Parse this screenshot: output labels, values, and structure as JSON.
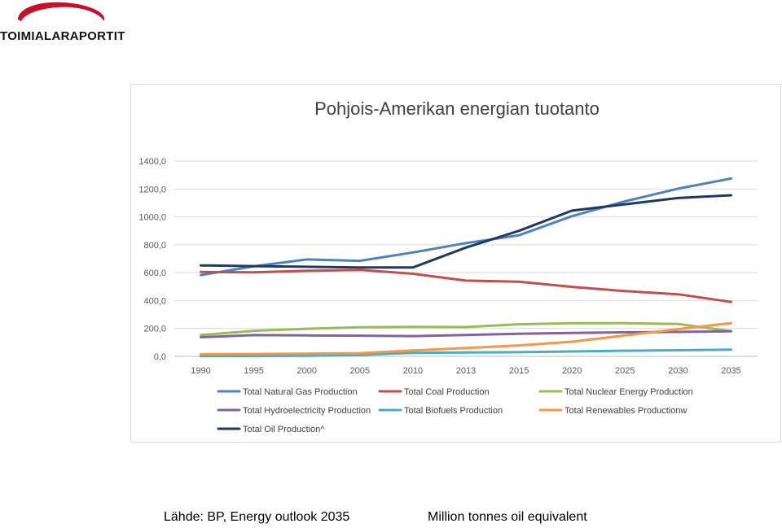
{
  "logo": {
    "text": "TOIMIALARAPORTIT",
    "icon": "swoosh-logo-icon"
  },
  "chart_data": {
    "type": "line",
    "title": "Pohjois-Amerikan energian tuotanto",
    "categories": [
      "1990",
      "1995",
      "2000",
      "2005",
      "2010",
      "2013",
      "2015",
      "2020",
      "2025",
      "2030",
      "2035"
    ],
    "y_ticks": [
      "0,0",
      "200,0",
      "400,0",
      "600,0",
      "800,0",
      "1000,0",
      "1200,0",
      "1400,0"
    ],
    "ylim": [
      0,
      1400
    ],
    "grid": true,
    "legend_position": "bottom",
    "series": [
      {
        "name": "Total Natural Gas Production",
        "color": "#4f81bd",
        "values": [
          583,
          645,
          695,
          685,
          745,
          812,
          868,
          1005,
          1112,
          1202,
          1275
        ]
      },
      {
        "name": "Total Coal Production",
        "color": "#c0504d",
        "values": [
          605,
          602,
          613,
          620,
          592,
          543,
          535,
          498,
          468,
          445,
          390
        ]
      },
      {
        "name": "Total Nuclear Energy Production",
        "color": "#9bbb59",
        "values": [
          153,
          183,
          198,
          208,
          212,
          210,
          230,
          238,
          238,
          232,
          180
        ]
      },
      {
        "name": "Total Hydroelectricity Production",
        "color": "#8064a2",
        "values": [
          137,
          152,
          150,
          148,
          145,
          153,
          162,
          168,
          172,
          175,
          180
        ]
      },
      {
        "name": "Total Biofuels Production",
        "color": "#4bacc6",
        "values": [
          2,
          3,
          4,
          10,
          25,
          28,
          30,
          35,
          40,
          44,
          48
        ]
      },
      {
        "name": "Total Renewables Productionw",
        "color": "#f79646",
        "values": [
          15,
          17,
          19,
          23,
          42,
          60,
          78,
          105,
          150,
          195,
          238
        ]
      },
      {
        "name": "Total Oil Production^",
        "color": "#1f3864",
        "values": [
          652,
          647,
          642,
          637,
          637,
          780,
          900,
          1045,
          1090,
          1135,
          1155
        ]
      }
    ]
  },
  "footer": {
    "source": "Lähde: BP, Energy outlook 2035",
    "units": "Million tonnes oil equivalent"
  }
}
